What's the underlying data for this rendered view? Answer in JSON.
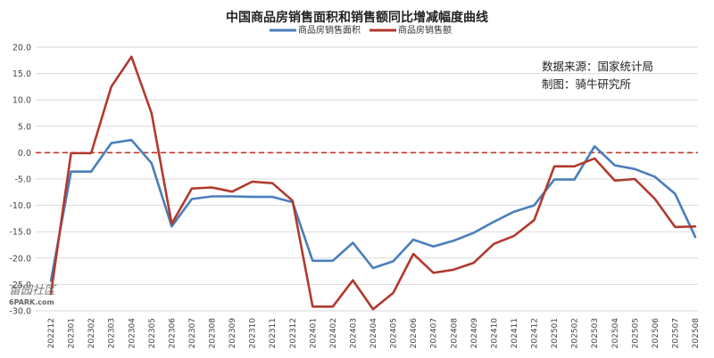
{
  "chart_data": {
    "type": "line",
    "title": "中国商品房销售面积和销售额同比增减幅度曲线",
    "xlabel": "",
    "ylabel": "",
    "ylim": [
      -30,
      20
    ],
    "yticks": [
      "20.0",
      "15.0",
      "10.0",
      "5.0",
      "0.0",
      "-5.0",
      "-10.0",
      "-15.0",
      "-20.0",
      "-25.0",
      "-30.0"
    ],
    "grid": true,
    "legend_position": "top-center",
    "categories": [
      "202212",
      "202301",
      "202302",
      "202303",
      "202304",
      "202305",
      "202306",
      "202307",
      "202308",
      "202309",
      "202310",
      "202311",
      "202312",
      "202401",
      "202402",
      "202403",
      "202404",
      "202405",
      "202406",
      "202407",
      "202408",
      "202409",
      "202410",
      "202411",
      "202412",
      "202501",
      "202502",
      "202503",
      "202504",
      "202505",
      "202506",
      "202507",
      "202508"
    ],
    "series": [
      {
        "name": "商品房销售面积",
        "color": "#4A7EBB",
        "values": [
          -24.3,
          -3.6,
          -3.6,
          1.8,
          2.4,
          -2.0,
          -14.0,
          -8.8,
          -8.3,
          -8.3,
          -8.4,
          -8.4,
          -9.4,
          -20.5,
          -20.5,
          -17.1,
          -21.9,
          -20.6,
          -16.5,
          -17.8,
          -16.7,
          -15.2,
          -13.1,
          -11.2,
          -10.0,
          -5.1,
          -5.1,
          1.2,
          -2.4,
          -3.1,
          -4.6,
          -7.8,
          -16.0
        ]
      },
      {
        "name": "商品房销售额",
        "color": "#B03A2E",
        "values": [
          -26.8,
          -0.1,
          -0.1,
          12.5,
          18.2,
          7.5,
          -13.5,
          -6.8,
          -6.6,
          -7.4,
          -5.5,
          -5.8,
          -9.1,
          -29.2,
          -29.2,
          -24.2,
          -29.7,
          -26.6,
          -19.2,
          -22.8,
          -22.2,
          -20.9,
          -17.3,
          -15.8,
          -12.8,
          -2.6,
          -2.6,
          -1.1,
          -5.3,
          -5.0,
          -8.8,
          -14.1,
          -14.0
        ]
      }
    ],
    "reference_line": {
      "y": 0,
      "style": "dashed",
      "color": "#C0392B"
    }
  },
  "source_note": {
    "line1": "数据来源：国家统计局",
    "line2": "制图：骑牛研究所"
  },
  "watermark": {
    "main": "留园社区",
    "sub": "6PARK.com"
  }
}
